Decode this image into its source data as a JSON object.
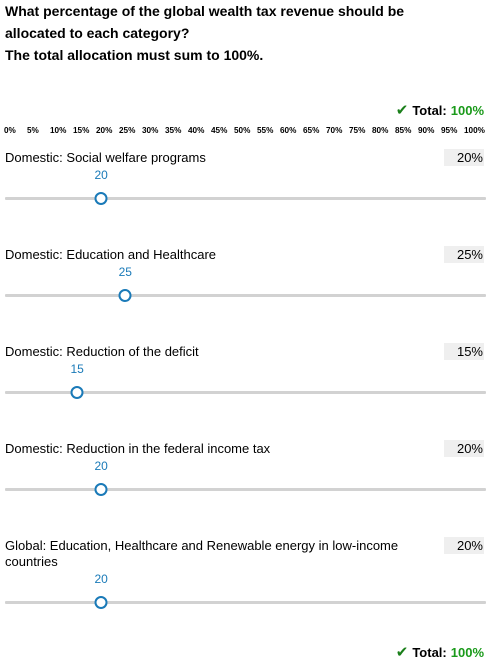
{
  "question": {
    "line1": "What percentage of the global wealth tax revenue should be",
    "line2": "allocated to each category?",
    "line3": "The total allocation must sum to 100%."
  },
  "total": {
    "label": "Total:",
    "value": "100%",
    "icon": "check-icon"
  },
  "scale_ticks": [
    "0%",
    "5%",
    "10%",
    "15%",
    "20%",
    "25%",
    "30%",
    "35%",
    "40%",
    "45%",
    "50%",
    "55%",
    "60%",
    "65%",
    "70%",
    "75%",
    "80%",
    "85%",
    "90%",
    "95%",
    "100%"
  ],
  "items": [
    {
      "label": "Domestic: Social welfare programs",
      "value_text": "20%",
      "value": 20
    },
    {
      "label": "Domestic: Education and Healthcare",
      "value_text": "25%",
      "value": 25
    },
    {
      "label": "Domestic: Reduction of the deficit",
      "value_text": "15%",
      "value": 15
    },
    {
      "label": "Domestic: Reduction in the federal income tax",
      "value_text": "20%",
      "value": 20
    },
    {
      "label": "Global: Education, Healthcare and Renewable energy in low-income countries",
      "value_text": "20%",
      "value": 20
    }
  ],
  "colors": {
    "accent": "#1a7ab8",
    "success": "#1a9a1a",
    "track": "#d2d2d2"
  }
}
